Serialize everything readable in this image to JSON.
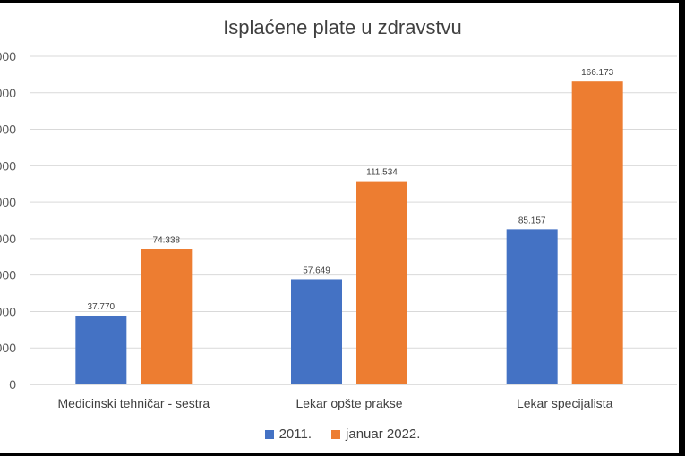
{
  "chart_data": {
    "type": "bar",
    "title": "Isplaćene plate u zdravstvu",
    "xlabel": "",
    "ylabel": "",
    "ylim": [
      0,
      180000
    ],
    "y_ticks": [
      0,
      20000,
      40000,
      60000,
      80000,
      100000,
      120000,
      140000,
      160000,
      180000
    ],
    "y_tick_labels": [
      "0",
      "000",
      "000",
      "000",
      "000",
      "000",
      "000",
      "000",
      "000",
      "000"
    ],
    "grid": true,
    "legend_position": "bottom",
    "categories": [
      "Medicinski tehničar - sestra",
      "Lekar opšte prakse",
      "Lekar specijalista"
    ],
    "series": [
      {
        "name": "2011.",
        "color": "#4472C4",
        "values": [
          37770,
          57649,
          85157
        ],
        "labels": [
          "37.770",
          "57.649",
          "85.157"
        ]
      },
      {
        "name": "januar 2022.",
        "color": "#ED7D31",
        "values": [
          74338,
          111534,
          166173
        ],
        "labels": [
          "74.338",
          "111.534",
          "166.173"
        ]
      }
    ]
  }
}
